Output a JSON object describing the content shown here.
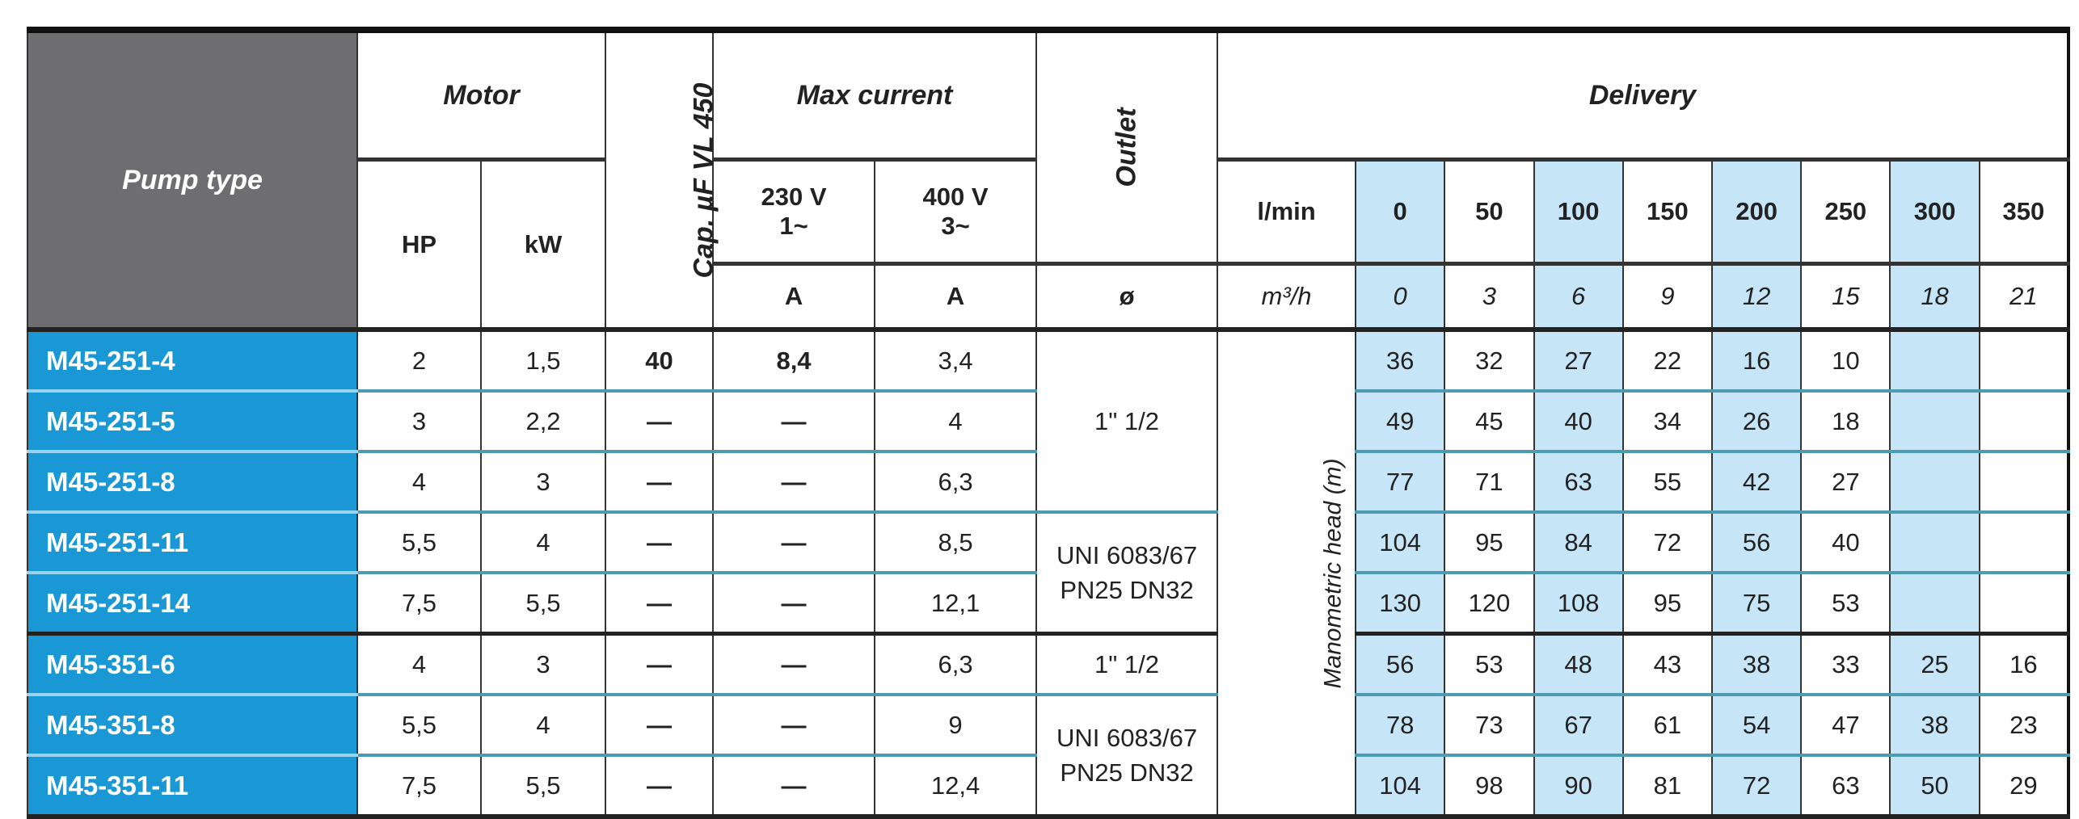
{
  "header": {
    "pump_type": "Pump type",
    "motor": "Motor",
    "hp": "HP",
    "kw": "kW",
    "capacitor": "Cap. µF VL 450",
    "max_current": "Max current",
    "v230": "230 V",
    "v230_phase": "1~",
    "v400": "400 V",
    "v400_phase": "3~",
    "amp_unit_230": "A",
    "amp_unit_400": "A",
    "outlet": "Outlet",
    "outlet_unit": "ø",
    "delivery": "Delivery",
    "lmin_label": "l/min",
    "m3h_label": "m³/h",
    "lmin": [
      "0",
      "50",
      "100",
      "150",
      "200",
      "250",
      "300",
      "350"
    ],
    "m3h": [
      "0",
      "3",
      "6",
      "9",
      "12",
      "15",
      "18",
      "21"
    ],
    "manometric_head": "Manometric head (m)"
  },
  "outlets": [
    {
      "label": "1\" 1/2",
      "rows": 3
    },
    {
      "label": "UNI 6083/67\nPN25 DN32",
      "rows": 2
    },
    {
      "label": "1\" 1/2",
      "rows": 1
    },
    {
      "label": "UNI 6083/67\nPN25 DN32",
      "rows": 2
    }
  ],
  "rows": [
    {
      "model": "M45-251-4",
      "hp": "2",
      "kw": "1,5",
      "cap": "40",
      "a230": "8,4",
      "a400": "3,4",
      "head": [
        "36",
        "32",
        "27",
        "22",
        "16",
        "10",
        "",
        ""
      ]
    },
    {
      "model": "M45-251-5",
      "hp": "3",
      "kw": "2,2",
      "cap": "—",
      "a230": "—",
      "a400": "4",
      "head": [
        "49",
        "45",
        "40",
        "34",
        "26",
        "18",
        "",
        ""
      ]
    },
    {
      "model": "M45-251-8",
      "hp": "4",
      "kw": "3",
      "cap": "—",
      "a230": "—",
      "a400": "6,3",
      "head": [
        "77",
        "71",
        "63",
        "55",
        "42",
        "27",
        "",
        ""
      ]
    },
    {
      "model": "M45-251-11",
      "hp": "5,5",
      "kw": "4",
      "cap": "—",
      "a230": "—",
      "a400": "8,5",
      "head": [
        "104",
        "95",
        "84",
        "72",
        "56",
        "40",
        "",
        ""
      ]
    },
    {
      "model": "M45-251-14",
      "hp": "7,5",
      "kw": "5,5",
      "cap": "—",
      "a230": "—",
      "a400": "12,1",
      "head": [
        "130",
        "120",
        "108",
        "95",
        "75",
        "53",
        "",
        ""
      ]
    },
    {
      "model": "M45-351-6",
      "hp": "4",
      "kw": "3",
      "cap": "—",
      "a230": "—",
      "a400": "6,3",
      "head": [
        "56",
        "53",
        "48",
        "43",
        "38",
        "33",
        "25",
        "16"
      ]
    },
    {
      "model": "M45-351-8",
      "hp": "5,5",
      "kw": "4",
      "cap": "—",
      "a230": "—",
      "a400": "9",
      "head": [
        "78",
        "73",
        "67",
        "61",
        "54",
        "47",
        "38",
        "23"
      ]
    },
    {
      "model": "M45-351-11",
      "hp": "7,5",
      "kw": "5,5",
      "cap": "—",
      "a230": "—",
      "a400": "12,4",
      "head": [
        "104",
        "98",
        "90",
        "81",
        "72",
        "63",
        "50",
        "29"
      ]
    }
  ],
  "colors": {
    "pump_header": "#6e6d6f",
    "model_cell": "#1a98d5",
    "shaded_column": "#c6e6f8",
    "row_rule": "#4d9bb0"
  }
}
